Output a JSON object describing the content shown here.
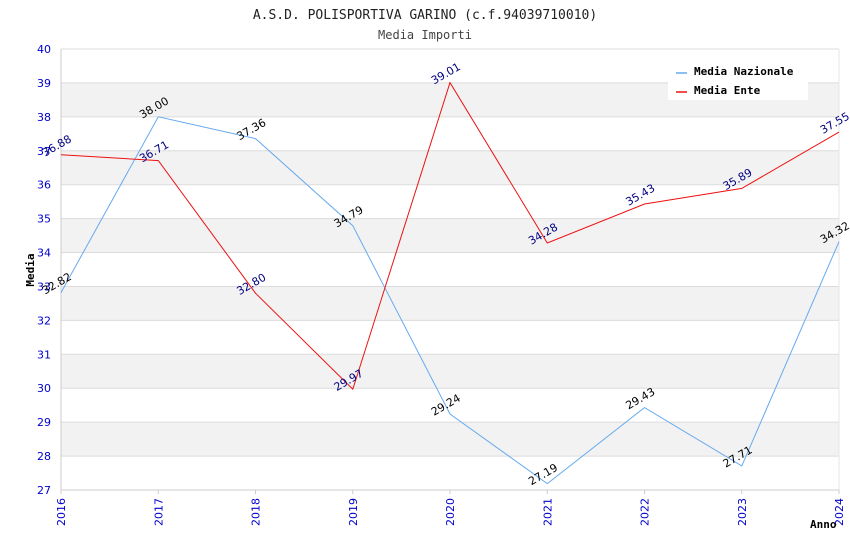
{
  "chart_data": {
    "type": "line",
    "title": "A.S.D. POLISPORTIVA GARINO (c.f.94039710010)",
    "subtitle": "Media Importi",
    "xlabel": "Anno",
    "ylabel": "Media",
    "x": [
      "2016",
      "2017",
      "2018",
      "2019",
      "2020",
      "2021",
      "2022",
      "2023",
      "2024"
    ],
    "ylim": [
      27,
      40
    ],
    "yticks": [
      27,
      28,
      29,
      30,
      31,
      32,
      33,
      34,
      35,
      36,
      37,
      38,
      39,
      40
    ],
    "grid": true,
    "legend_position": "top-right",
    "series": [
      {
        "name": "Media Nazionale",
        "color": "#66aaee",
        "label_color": "#000000",
        "values": [
          32.82,
          38.0,
          37.36,
          34.79,
          29.24,
          27.19,
          29.43,
          27.71,
          34.32
        ],
        "labels": [
          "32.82",
          "38.00",
          "37.36",
          "34.79",
          "29.24",
          "27.19",
          "29.43",
          "27.71",
          "34.32"
        ]
      },
      {
        "name": "Media Ente",
        "color": "#ee1111",
        "label_color": "#000080",
        "values": [
          36.88,
          36.71,
          32.8,
          29.97,
          39.01,
          34.28,
          35.43,
          35.89,
          37.55
        ],
        "labels": [
          "36.88",
          "36.71",
          "32.80",
          "29.97",
          "39.01",
          "34.28",
          "35.43",
          "35.89",
          "37.55"
        ]
      }
    ]
  }
}
